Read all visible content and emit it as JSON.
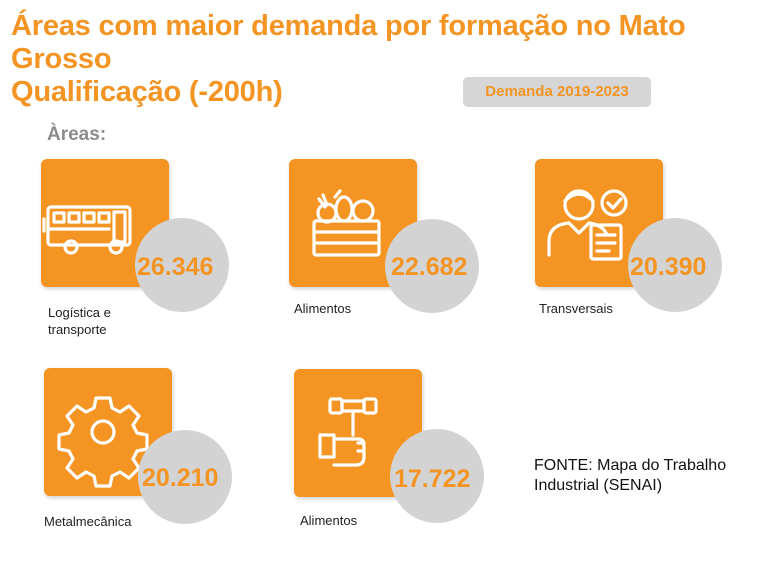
{
  "header": {
    "title_line1": "Áreas com maior demanda por formação no Mato Grosso",
    "title_line2": "Qualificação (-200h)",
    "badge": "Demanda 2019-2023"
  },
  "areas_label": "Àreas:",
  "cards": [
    {
      "value": "26.346",
      "caption_line1": "Logística e",
      "caption_line2": "transporte",
      "icon": "bus-icon"
    },
    {
      "value": "22.682",
      "caption_line1": "Alimentos",
      "icon": "food-crate-icon"
    },
    {
      "value": "20.390",
      "caption_line1": "Transversais",
      "icon": "worker-document-icon"
    },
    {
      "value": "20.210",
      "caption_line1": "Metalmecânica",
      "icon": "gear-icon"
    },
    {
      "value": "17.722",
      "caption_line1": "Alimentos",
      "icon": "tools-hand-icon"
    }
  ],
  "source": "FONTE: Mapa do Trabalho Industrial (SENAI)",
  "colors": {
    "accent": "#f39423",
    "circle": "#d3d3d3",
    "badge_bg": "#d6d6d6",
    "areas_label": "#8c8c8c"
  }
}
